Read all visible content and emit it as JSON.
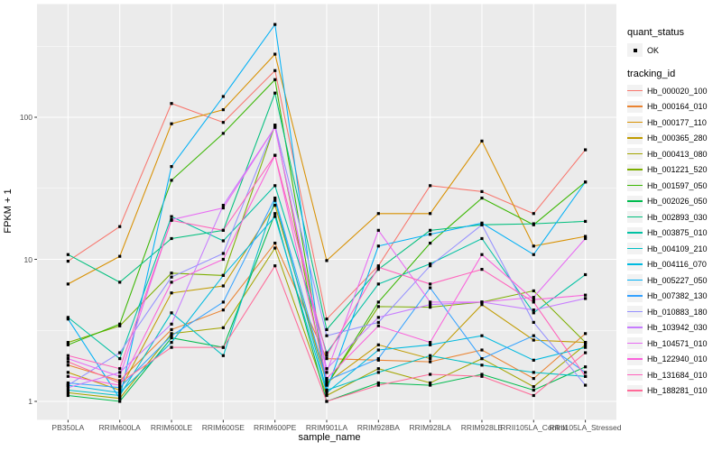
{
  "chart_data": {
    "type": "line",
    "title": "",
    "xlabel": "sample_name",
    "ylabel": "FPKM + 1",
    "y_scale": "log10",
    "y_ticks": [
      1,
      10,
      100
    ],
    "y_minor_gridlines": [
      3.162,
      31.62,
      316.2
    ],
    "ylim": [
      0.75,
      630
    ],
    "grid": true,
    "legend_position": "right",
    "point_shape": "filled-square",
    "point_color": "#000000",
    "categories": [
      "PB350LA",
      "RRIM600LA",
      "RRIM600LE",
      "RRIM600SE",
      "RRIM600PE",
      "RRIM901LA",
      "RRIM928BA",
      "RRIM928LA",
      "RRIM928LE",
      "RRII105LA_Control",
      "RRII105LA_Stressed"
    ],
    "series": [
      {
        "name": "Hb_000020_100",
        "color": "#F8766D",
        "values": [
          9.7,
          17,
          125,
          92,
          213,
          3.8,
          9,
          33,
          30,
          21,
          59
        ]
      },
      {
        "name": "Hb_000164_010",
        "color": "#EA8331",
        "values": [
          1.8,
          1.4,
          3.2,
          4.4,
          13,
          2.0,
          1.95,
          1.9,
          2.3,
          1.45,
          3.0
        ]
      },
      {
        "name": "Hb_000177_110",
        "color": "#D89000",
        "values": [
          6.7,
          10.5,
          90,
          113,
          278,
          9.8,
          21,
          21,
          68,
          12.4,
          14.5
        ]
      },
      {
        "name": "Hb_000365_280",
        "color": "#C09B00",
        "values": [
          1.6,
          1.2,
          5.8,
          6.5,
          24,
          1.35,
          2.5,
          2.0,
          4.8,
          2.7,
          2.6
        ]
      },
      {
        "name": "Hb_000413_080",
        "color": "#A3A500",
        "values": [
          1.15,
          1.05,
          3.0,
          3.3,
          12,
          1.1,
          1.7,
          1.35,
          2.0,
          1.27,
          2.5
        ]
      },
      {
        "name": "Hb_001221_520",
        "color": "#7CAE00",
        "values": [
          2.6,
          3.4,
          8.0,
          7.7,
          88,
          1.3,
          4.65,
          4.6,
          5.0,
          6.0,
          2.6
        ]
      },
      {
        "name": "Hb_001597_050",
        "color": "#39B600",
        "values": [
          2.5,
          3.5,
          36,
          77,
          184,
          1.3,
          5.0,
          13,
          27,
          17.5,
          35
        ]
      },
      {
        "name": "Hb_002026_050",
        "color": "#00BB4E",
        "values": [
          1.1,
          1.0,
          2.8,
          2.4,
          21,
          1.0,
          1.35,
          1.3,
          1.55,
          1.2,
          1.75
        ]
      },
      {
        "name": "Hb_002893_030",
        "color": "#00BF7D",
        "values": [
          10.8,
          6.9,
          14,
          16,
          148,
          3.2,
          8.5,
          16,
          17.5,
          17.8,
          18.5
        ]
      },
      {
        "name": "Hb_003875_010",
        "color": "#00C1A3",
        "values": [
          3.9,
          2.0,
          20,
          13.5,
          33,
          2.2,
          6.7,
          9.3,
          14,
          4.2,
          7.8
        ]
      },
      {
        "name": "Hb_004109_210",
        "color": "#00BFC4",
        "values": [
          1.2,
          1.1,
          4.2,
          2.1,
          26,
          1.2,
          1.6,
          2.1,
          1.8,
          1.6,
          1.5
        ]
      },
      {
        "name": "Hb_004116_070",
        "color": "#00BAE0",
        "values": [
          1.3,
          1.15,
          2.6,
          7.7,
          20,
          1.15,
          2.3,
          2.5,
          2.9,
          1.95,
          2.4
        ]
      },
      {
        "name": "Hb_005227_050",
        "color": "#00B0F6",
        "values": [
          3.8,
          1.05,
          45,
          140,
          450,
          1.2,
          12.4,
          15,
          18,
          10.8,
          35
        ]
      },
      {
        "name": "Hb_007382_130",
        "color": "#35A2FF",
        "values": [
          1.35,
          1.25,
          2.9,
          5.0,
          27,
          1.4,
          2.0,
          6.3,
          2.0,
          2.9,
          1.6
        ]
      },
      {
        "name": "Hb_010883_180",
        "color": "#9590FF",
        "values": [
          1.3,
          2.2,
          7.5,
          11,
          88,
          2.9,
          3.6,
          9.0,
          17.5,
          3.6,
          1.3
        ]
      },
      {
        "name": "Hb_103942_030",
        "color": "#C77CFF",
        "values": [
          1.25,
          1.6,
          3.5,
          24,
          85,
          1.7,
          3.9,
          4.8,
          5.0,
          4.4,
          5.3
        ]
      },
      {
        "name": "Hb_104571_010",
        "color": "#E76BF3",
        "values": [
          2.0,
          1.5,
          19,
          23,
          85,
          1.6,
          16,
          5.0,
          5.0,
          5.4,
          14
        ]
      },
      {
        "name": "Hb_122940_010",
        "color": "#FA62DB",
        "values": [
          1.5,
          1.3,
          6.9,
          10,
          54,
          1.45,
          3.4,
          2.6,
          10.8,
          5.2,
          5.6
        ]
      },
      {
        "name": "Hb_131684_010",
        "color": "#FF62BC",
        "values": [
          2.1,
          1.7,
          18.8,
          16,
          54,
          2.1,
          8.8,
          6.7,
          8.5,
          5.0,
          1.5
        ]
      },
      {
        "name": "Hb_188281_010",
        "color": "#FF6A98",
        "values": [
          1.9,
          1.35,
          2.4,
          2.4,
          9,
          1.0,
          1.3,
          1.55,
          1.5,
          1.1,
          2.2
        ]
      }
    ]
  },
  "legend": {
    "quant_status_title": "quant_status",
    "quant_status_items": [
      {
        "label": "OK",
        "symbol": "black-square"
      }
    ],
    "tracking_id_title": "tracking_id"
  },
  "colors": {
    "panel_background": "#EBEBEB",
    "grid_major": "#FFFFFF",
    "grid_minor": "#FFFFFF",
    "legend_key_background": "#F2F2F2",
    "axis_text": "#4D4D4D",
    "tick_mark": "#333333",
    "point": "#000000"
  }
}
